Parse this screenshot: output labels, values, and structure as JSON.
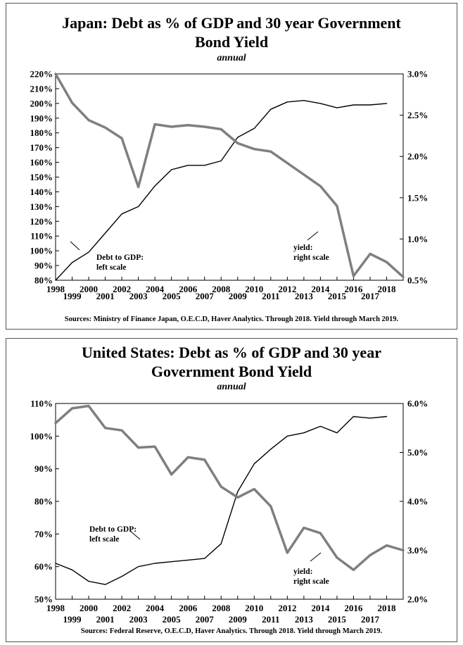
{
  "chart_data": [
    {
      "type": "line",
      "title": "Japan: Debt as % of GDP and 30 year Government Bond Yield",
      "title_line1": "Japan: Debt as % of GDP and 30 year Government",
      "title_line2": "Bond Yield",
      "subtitle": "annual",
      "source": "Sources: Ministry of Finance Japan, O.E.C.D, Haver Analytics. Through 2018. Yield through March 2019.",
      "xlim": [
        1998,
        2019
      ],
      "x_ticks": [
        1998,
        2000,
        2002,
        2004,
        2006,
        2008,
        2010,
        2012,
        2014,
        2016,
        2018
      ],
      "ylim_left": [
        80,
        220
      ],
      "y_ticks_left": [
        80,
        90,
        100,
        110,
        120,
        130,
        140,
        150,
        160,
        170,
        180,
        190,
        200,
        210,
        220
      ],
      "ylim_right": [
        0.5,
        3.0
      ],
      "y_ticks_right": [
        0.5,
        1.0,
        1.5,
        2.0,
        2.5,
        3.0
      ],
      "series": [
        {
          "name": "Debt to GDP:",
          "name_line2": "left scale",
          "axis": "left",
          "color": "#000000",
          "x": [
            1998,
            1999,
            2000,
            2001,
            2002,
            2003,
            2004,
            2005,
            2006,
            2007,
            2008,
            2009,
            2010,
            2011,
            2012,
            2013,
            2014,
            2015,
            2016,
            2017,
            2018
          ],
          "values": [
            80,
            92,
            99,
            112,
            125,
            130,
            144,
            155,
            158,
            158,
            161,
            177,
            183,
            196,
            201,
            202,
            200,
            197,
            199,
            199,
            200
          ]
        },
        {
          "name": "yield:",
          "name_line2": "right scale",
          "axis": "right",
          "color": "#7f7f7f",
          "x": [
            1998,
            1999,
            2000,
            2001,
            2002,
            2003,
            2004,
            2005,
            2006,
            2007,
            2008,
            2009,
            2010,
            2011,
            2012,
            2013,
            2014,
            2015,
            2016,
            2017,
            2018,
            2019
          ],
          "values": [
            3.0,
            2.65,
            2.44,
            2.35,
            2.22,
            1.63,
            2.39,
            2.36,
            2.38,
            2.36,
            2.33,
            2.16,
            2.09,
            2.06,
            1.92,
            1.78,
            1.64,
            1.4,
            0.55,
            0.82,
            0.72,
            0.54
          ]
        }
      ]
    },
    {
      "type": "line",
      "title": "United States: Debt as % of GDP and 30 year Government Bond Yield",
      "title_line1": "United States: Debt as % of GDP and 30 year",
      "title_line2": "Government Bond Yield",
      "subtitle": "annual",
      "source": "Sources: Federal Reserve, O.E.C.D, Haver Analytics. Through 2018. Yield through March 2019.",
      "xlim": [
        1998,
        2019
      ],
      "x_ticks": [
        1998,
        2000,
        2002,
        2004,
        2006,
        2008,
        2010,
        2012,
        2014,
        2016,
        2018
      ],
      "ylim_left": [
        50,
        110
      ],
      "y_ticks_left": [
        50,
        60,
        70,
        80,
        90,
        100,
        110
      ],
      "ylim_right": [
        2.0,
        6.0
      ],
      "y_ticks_right": [
        2.0,
        3.0,
        4.0,
        5.0,
        6.0
      ],
      "series": [
        {
          "name": "Debt to GDP:",
          "name_line2": "left scale",
          "axis": "left",
          "color": "#000000",
          "x": [
            1998,
            1999,
            2000,
            2001,
            2002,
            2003,
            2004,
            2005,
            2006,
            2007,
            2008,
            2009,
            2010,
            2011,
            2012,
            2013,
            2014,
            2015,
            2016,
            2017,
            2018
          ],
          "values": [
            61,
            59,
            55.5,
            54.5,
            57,
            60,
            61,
            61.5,
            62,
            62.5,
            67,
            83,
            91.5,
            96,
            100,
            101,
            103,
            101,
            106,
            105.5,
            106
          ]
        },
        {
          "name": "yield:",
          "name_line2": "right scale",
          "axis": "right",
          "color": "#7f7f7f",
          "x": [
            1998,
            1999,
            2000,
            2001,
            2002,
            2003,
            2004,
            2005,
            2006,
            2007,
            2008,
            2009,
            2010,
            2011,
            2012,
            2013,
            2014,
            2015,
            2016,
            2017,
            2018,
            2019
          ],
          "values": [
            5.6,
            5.9,
            5.95,
            5.5,
            5.45,
            5.1,
            5.12,
            4.55,
            4.9,
            4.85,
            4.3,
            4.08,
            4.25,
            3.9,
            2.95,
            3.46,
            3.35,
            2.85,
            2.6,
            2.9,
            3.1,
            3.0
          ]
        }
      ]
    }
  ]
}
